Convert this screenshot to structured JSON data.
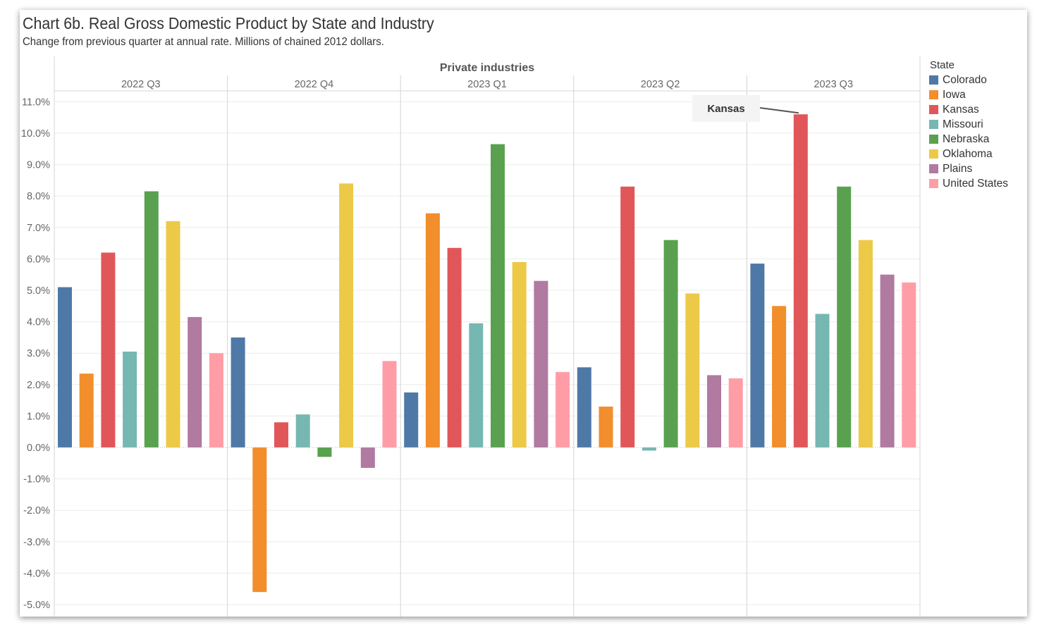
{
  "title": "Chart 6b. Real Gross Domestic Product by State and Industry",
  "subtitle": "Change from previous quarter at annual rate. Millions of chained 2012 dollars.",
  "legend": {
    "title": "State",
    "items": [
      {
        "label": "Colorado",
        "color": "#4e79a7"
      },
      {
        "label": "Iowa",
        "color": "#f28e2b"
      },
      {
        "label": "Kansas",
        "color": "#e15759"
      },
      {
        "label": "Missouri",
        "color": "#76b7b2"
      },
      {
        "label": "Nebraska",
        "color": "#59a14f"
      },
      {
        "label": "Oklahoma",
        "color": "#edc948"
      },
      {
        "label": "Plains",
        "color": "#b07aa1"
      },
      {
        "label": "United States",
        "color": "#ff9da7"
      }
    ]
  },
  "annotation": {
    "text": "Kansas"
  },
  "chart_data": {
    "type": "bar",
    "panel_header": "Private industries",
    "categories": [
      "2022 Q3",
      "2022 Q4",
      "2023 Q1",
      "2023 Q2",
      "2023 Q3"
    ],
    "series": [
      {
        "name": "Colorado",
        "color": "#4e79a7",
        "values": [
          5.1,
          3.5,
          1.75,
          2.55,
          5.85
        ]
      },
      {
        "name": "Iowa",
        "color": "#f28e2b",
        "values": [
          2.35,
          -4.6,
          7.45,
          1.3,
          4.5
        ]
      },
      {
        "name": "Kansas",
        "color": "#e15759",
        "values": [
          6.2,
          0.8,
          6.35,
          8.3,
          10.6
        ]
      },
      {
        "name": "Missouri",
        "color": "#76b7b2",
        "values": [
          3.05,
          1.05,
          3.95,
          -0.1,
          4.25
        ]
      },
      {
        "name": "Nebraska",
        "color": "#59a14f",
        "values": [
          8.15,
          -0.3,
          9.65,
          6.6,
          8.3
        ]
      },
      {
        "name": "Oklahoma",
        "color": "#edc948",
        "values": [
          7.2,
          8.4,
          5.9,
          4.9,
          6.6
        ]
      },
      {
        "name": "Plains",
        "color": "#b07aa1",
        "values": [
          4.15,
          -0.65,
          5.3,
          2.3,
          5.5
        ]
      },
      {
        "name": "United States",
        "color": "#ff9da7",
        "values": [
          3.0,
          2.75,
          2.4,
          2.2,
          5.25
        ]
      }
    ],
    "y_ticks": [
      "11.0%",
      "10.0%",
      "9.0%",
      "8.0%",
      "7.0%",
      "6.0%",
      "5.0%",
      "4.0%",
      "3.0%",
      "2.0%",
      "1.0%",
      "0.0%",
      "-1.0%",
      "-2.0%",
      "-3.0%",
      "-4.0%",
      "-5.0%"
    ],
    "ylim": [
      -5.4,
      11.3
    ],
    "grid": true,
    "legend_position": "right"
  }
}
